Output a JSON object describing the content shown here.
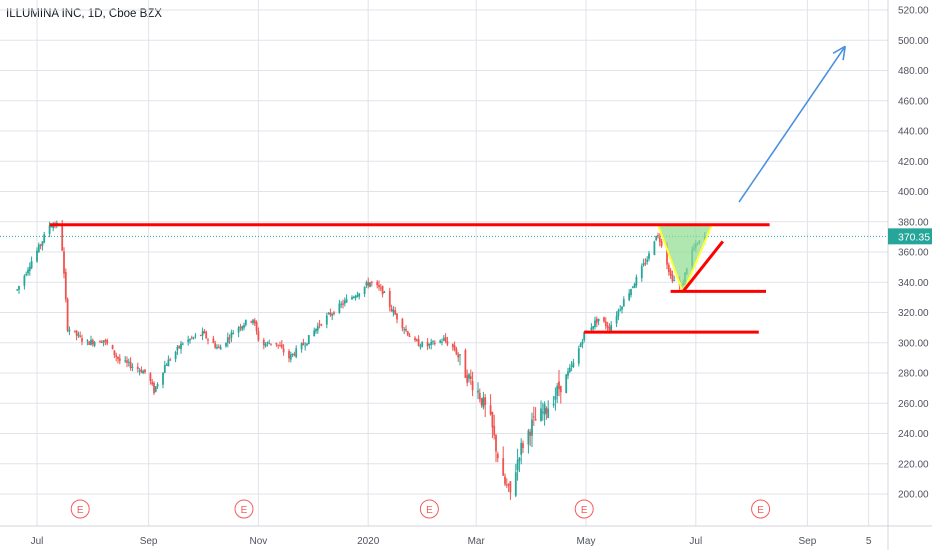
{
  "chart_data": {
    "type": "candlestick",
    "title": "ILLUMINA INC, 1D, Cboe BZX",
    "last_price": "370.35",
    "ylim": [
      180,
      525
    ],
    "y_ticks": [
      "200.00",
      "220.00",
      "240.00",
      "260.00",
      "280.00",
      "300.00",
      "320.00",
      "340.00",
      "360.00",
      "380.00",
      "400.00",
      "420.00",
      "440.00",
      "460.00",
      "480.00",
      "500.00",
      "520.00"
    ],
    "x_ticks": [
      "Jul",
      "Sep",
      "Nov",
      "2020",
      "Mar",
      "May",
      "Jul",
      "Sep",
      "5"
    ],
    "earnings_label": "E",
    "grid": true,
    "colors": {
      "up": "#26a69a",
      "down": "#ef5350",
      "grid": "#e1e3ea",
      "axis_text": "#50535e",
      "resistance": "#ff0000",
      "arrow": "#4a90e2",
      "pattern_fill": "#8fdc8f",
      "pattern_edge": "#ffff33",
      "last_price_bg": "#26a69a",
      "earnings": "#f45b5b"
    },
    "price_keypoints": [
      [
        "Jun 20",
        335
      ],
      [
        "Jun 27",
        352
      ],
      [
        "Jul 3",
        365
      ],
      [
        "Jul 8",
        378
      ],
      [
        "Jul 12",
        378
      ],
      [
        "Jul 15",
        362
      ],
      [
        "Jul 18",
        310
      ],
      [
        "Jul 28",
        300
      ],
      [
        "Aug 7",
        302
      ],
      [
        "Aug 16",
        288
      ],
      [
        "Aug 24",
        284
      ],
      [
        "Aug 31",
        280
      ],
      [
        "Sep 4",
        268
      ],
      [
        "Sep 10",
        285
      ],
      [
        "Sep 20",
        300
      ],
      [
        "Oct 1",
        306
      ],
      [
        "Oct 10",
        296
      ],
      [
        "Oct 20",
        310
      ],
      [
        "Oct 29",
        316
      ],
      [
        "Nov 2",
        298
      ],
      [
        "Nov 10",
        301
      ],
      [
        "Nov 18",
        290
      ],
      [
        "Nov 27",
        300
      ],
      [
        "Dec 6",
        314
      ],
      [
        "Dec 17",
        325
      ],
      [
        "Dec 27",
        334
      ],
      [
        "Jan 2",
        340
      ],
      [
        "Jan 9",
        334
      ],
      [
        "Jan 14",
        322
      ],
      [
        "Jan 22",
        308
      ],
      [
        "Jan 27",
        300
      ],
      [
        "Feb 3",
        298
      ],
      [
        "Feb 12",
        302
      ],
      [
        "Feb 18",
        296
      ],
      [
        "Feb 24",
        280
      ],
      [
        "Mar 2",
        268
      ],
      [
        "Mar 9",
        248
      ],
      [
        "Mar 16",
        208
      ],
      [
        "Mar 20",
        200
      ],
      [
        "Mar 25",
        228
      ],
      [
        "Apr 1",
        246
      ],
      [
        "Apr 9",
        256
      ],
      [
        "Apr 16",
        270
      ],
      [
        "Apr 24",
        286
      ],
      [
        "Apr 30",
        306
      ],
      [
        "May 8",
        316
      ],
      [
        "May 14",
        310
      ],
      [
        "May 22",
        328
      ],
      [
        "May 29",
        342
      ],
      [
        "Jun 5",
        358
      ],
      [
        "Jun 9",
        372
      ],
      [
        "Jun 12",
        366
      ],
      [
        "Jun 17",
        344
      ],
      [
        "Jun 23",
        336
      ],
      [
        "Jun 28",
        360
      ],
      [
        "Jul 6",
        370
      ]
    ],
    "earnings_dates": [
      "Jul 25 2019",
      "Oct 24 2019",
      "Feb 4 2020",
      "Apr 30 2020",
      "Aug 6 2020"
    ],
    "annotations": {
      "resistance_line": {
        "y": 378,
        "from": "Jul 8 2019",
        "to": "Aug 11 2020"
      },
      "support_1": {
        "y": 334,
        "from": "Jun 17 2020",
        "to": "Aug 9 2020"
      },
      "support_2": {
        "y": 307,
        "from": "Apr 30 2020",
        "to": "Aug 5 2020"
      },
      "pattern": {
        "points": [
          [
            "Jun 10 2020",
            378
          ],
          [
            "Jul 10 2020",
            378
          ],
          [
            "Jun 24 2020",
            333
          ]
        ]
      },
      "trend_up": {
        "from": [
          "Jun 24 2020",
          334
        ],
        "to": [
          "Jul 16 2020",
          367
        ]
      },
      "arrow": {
        "from": [
          "Jul 25 2020",
          393
        ],
        "to": [
          "Sep 22 2020",
          496
        ]
      }
    }
  }
}
